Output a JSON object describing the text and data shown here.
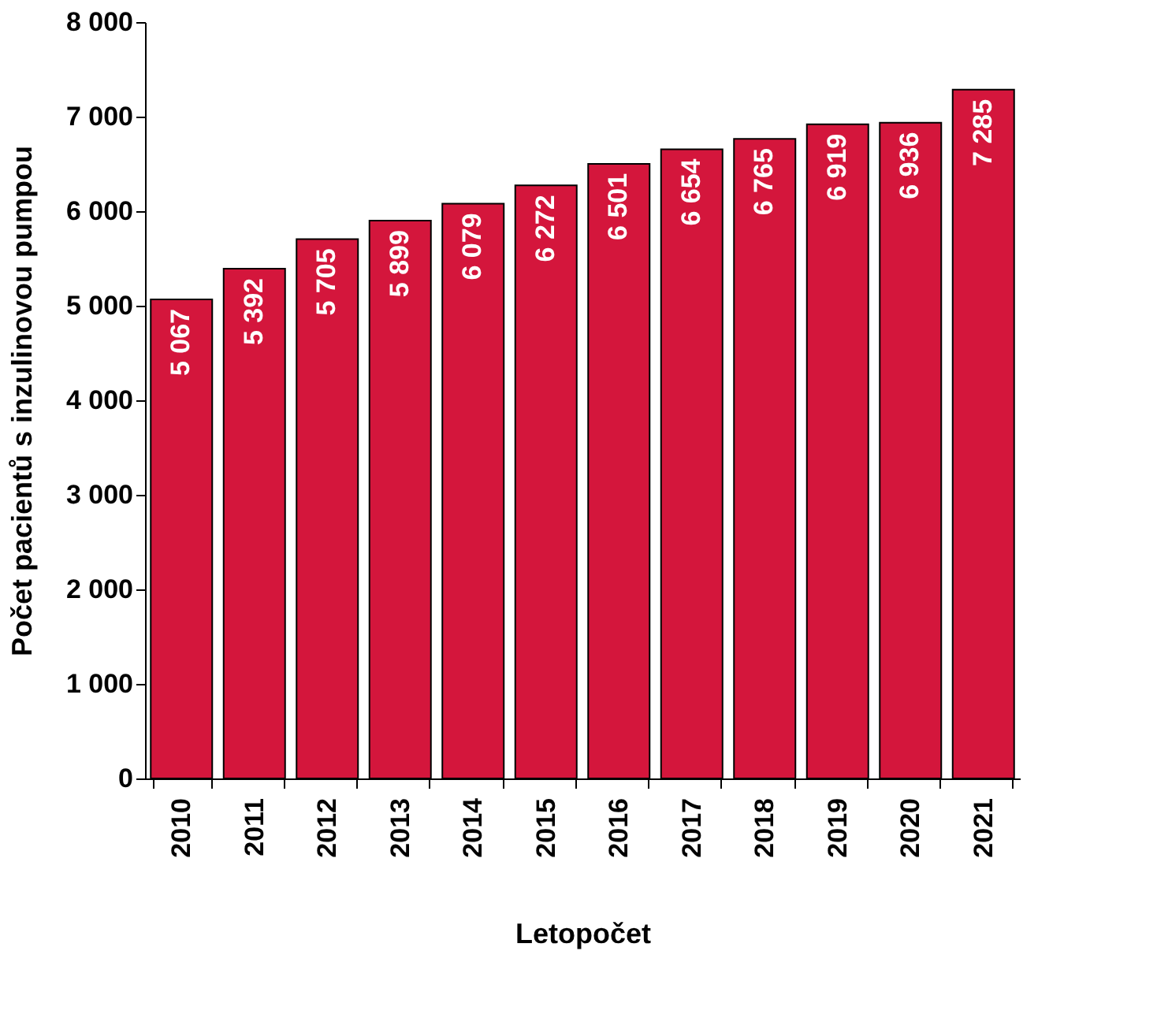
{
  "chart_data": {
    "type": "bar",
    "xlabel": "Letopočet",
    "ylabel": "Počet pacientů s inzulinovou pumpou",
    "categories": [
      "2010",
      "2011",
      "2012",
      "2013",
      "2014",
      "2015",
      "2016",
      "2017",
      "2018",
      "2019",
      "2020",
      "2021"
    ],
    "values": [
      5067,
      5392,
      5705,
      5899,
      6079,
      6272,
      6501,
      6654,
      6765,
      6919,
      6936,
      7285
    ],
    "value_labels": [
      "5 067",
      "5 392",
      "5 705",
      "5 899",
      "6 079",
      "6 272",
      "6 501",
      "6 654",
      "6 765",
      "6 919",
      "6 936",
      "7 285"
    ],
    "color": "#d4163c",
    "ylim": [
      0,
      8000
    ],
    "yticks": [
      {
        "value": 0,
        "label": "0"
      },
      {
        "value": 1000,
        "label": "1 000"
      },
      {
        "value": 2000,
        "label": "2 000"
      },
      {
        "value": 3000,
        "label": "3 000"
      },
      {
        "value": 4000,
        "label": "4 000"
      },
      {
        "value": 5000,
        "label": "5 000"
      },
      {
        "value": 6000,
        "label": "6 000"
      },
      {
        "value": 7000,
        "label": "7 000"
      },
      {
        "value": 8000,
        "label": "8 000"
      }
    ],
    "grid": false
  }
}
